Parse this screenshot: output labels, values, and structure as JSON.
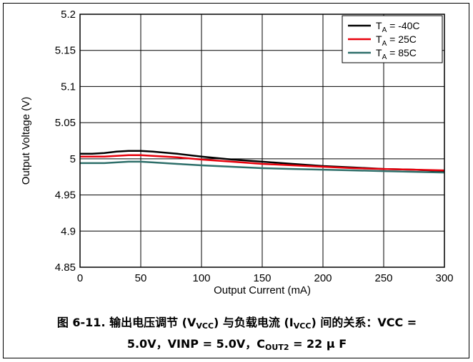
{
  "chart_data": {
    "type": "line",
    "title": "",
    "xlabel": "Output Current (mA)",
    "ylabel": "Output Voltage (V)",
    "xlim": [
      0,
      300
    ],
    "ylim": [
      4.85,
      5.2
    ],
    "xticks": [
      "0",
      "50",
      "100",
      "150",
      "200",
      "250",
      "300"
    ],
    "yticks": [
      "4.85",
      "4.9",
      "4.95",
      "5",
      "5.05",
      "5.1",
      "5.15",
      "5.2"
    ],
    "grid": true,
    "legend_position": "top-right",
    "series": [
      {
        "name_prefix": "T",
        "name_sub": "A",
        "name_suffix": " = -40C",
        "color": "#000000",
        "x": [
          0,
          10,
          20,
          30,
          40,
          50,
          60,
          80,
          100,
          125,
          150,
          175,
          200,
          225,
          250,
          275,
          300
        ],
        "y": [
          5.007,
          5.007,
          5.008,
          5.01,
          5.011,
          5.011,
          5.01,
          5.007,
          5.003,
          4.999,
          4.996,
          4.993,
          4.99,
          4.988,
          4.986,
          4.985,
          4.983
        ]
      },
      {
        "name_prefix": "T",
        "name_sub": "A",
        "name_suffix": " = 25C",
        "color": "#e8000b",
        "x": [
          0,
          10,
          20,
          30,
          40,
          50,
          60,
          80,
          100,
          125,
          150,
          175,
          200,
          225,
          250,
          275,
          300
        ],
        "y": [
          5.003,
          5.003,
          5.003,
          5.004,
          5.005,
          5.005,
          5.004,
          5.002,
          4.999,
          4.996,
          4.993,
          4.991,
          4.989,
          4.987,
          4.986,
          4.985,
          4.984
        ]
      },
      {
        "name_prefix": "T",
        "name_sub": "A",
        "name_suffix": " = 85C",
        "color": "#2e6f6a",
        "x": [
          0,
          10,
          20,
          30,
          40,
          50,
          60,
          80,
          100,
          125,
          150,
          175,
          200,
          225,
          250,
          275,
          300
        ],
        "y": [
          4.994,
          4.994,
          4.994,
          4.995,
          4.996,
          4.996,
          4.995,
          4.993,
          4.991,
          4.989,
          4.987,
          4.986,
          4.985,
          4.984,
          4.983,
          4.982,
          4.981
        ]
      }
    ]
  },
  "caption": {
    "part1": "图 6-11. 输出电压调节 (V",
    "sub1": "VCC",
    "part2": ") 与负载电流 (I",
    "sub2": "VCC",
    "part3": ") 间的关系：VCC =",
    "part4": "5.0V，VINP = 5.0V，C",
    "sub3": "OUT2",
    "part5": " = 22 µ F"
  }
}
